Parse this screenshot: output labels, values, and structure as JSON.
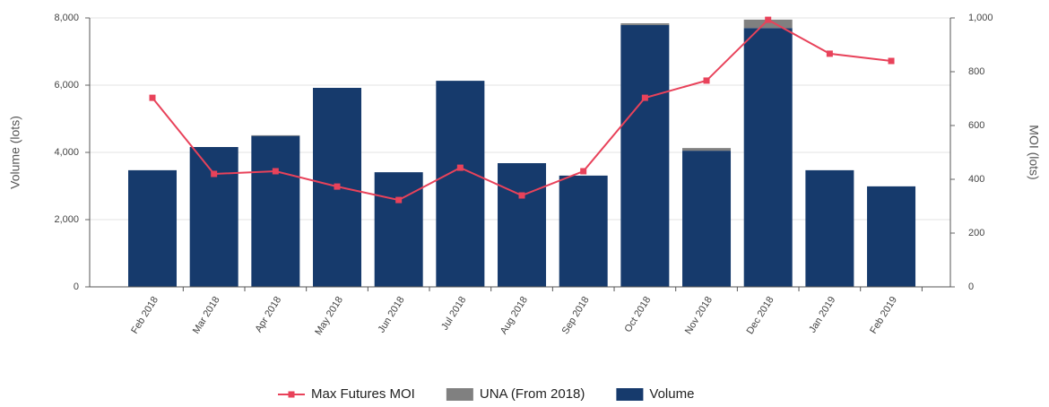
{
  "chart_data": {
    "type": "bar",
    "categories": [
      "Feb 2018",
      "Mar 2018",
      "Apr 2018",
      "May 2018",
      "Jun 2018",
      "Jul 2018",
      "Aug 2018",
      "Sep 2018",
      "Oct 2018",
      "Nov 2018",
      "Dec 2018",
      "Jan 2019",
      "Feb 2019"
    ],
    "series": [
      {
        "name": "Max Futures MOI",
        "type": "line",
        "axis": "y2",
        "color": "#e8425a",
        "values": [
          703,
          420,
          430,
          373,
          323,
          443,
          340,
          430,
          703,
          767,
          993,
          867,
          840
        ]
      },
      {
        "name": "UNA (From 2018)",
        "type": "bar",
        "stack": true,
        "color": "#808080",
        "values": [
          0,
          0,
          20,
          0,
          0,
          0,
          0,
          0,
          50,
          80,
          250,
          0,
          0
        ]
      },
      {
        "name": "Volume",
        "type": "bar",
        "color": "#163a6c",
        "values": [
          3470,
          4160,
          4490,
          5920,
          3410,
          6130,
          3680,
          3310,
          7790,
          4050,
          7700,
          3470,
          2990
        ]
      }
    ],
    "y_label": "Volume (lots)",
    "y2_label": "MOI (lots)",
    "ylim": [
      0,
      8000
    ],
    "yticks": [
      0,
      {
        "value": 2000,
        "label": "2,000"
      },
      {
        "value": 4000,
        "label": "4,000"
      },
      {
        "value": 6000,
        "label": "6,000"
      },
      {
        "value": 8000,
        "label": "8,000"
      }
    ],
    "y2lim": [
      0,
      1000
    ],
    "y2ticks": [
      0,
      200,
      400,
      600,
      800,
      {
        "value": 1000,
        "label": "1,000"
      }
    ],
    "grid": true,
    "legend": "bottom"
  }
}
